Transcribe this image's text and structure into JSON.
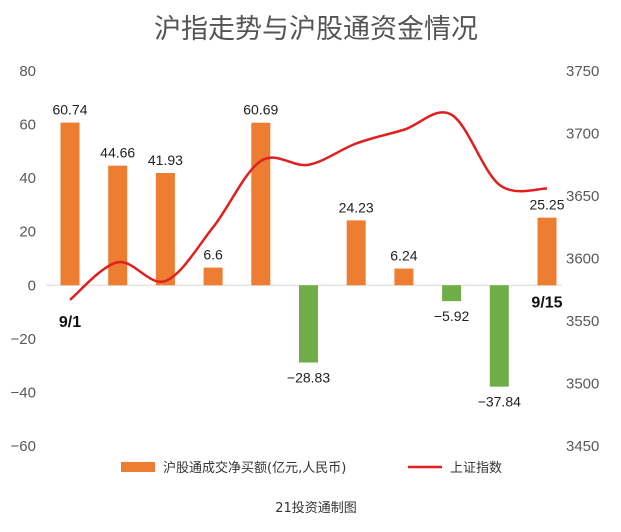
{
  "chart_data": {
    "type": "bar+line",
    "title": "沪指走势与沪股通资金情况",
    "footer": "21投资通制图",
    "bar_series": {
      "name": "沪股通成交净买额(亿元,人民币)",
      "values": [
        60.74,
        44.66,
        41.93,
        6.6,
        60.69,
        -28.83,
        24.23,
        6.24,
        -5.92,
        -37.84,
        25.25
      ],
      "labels": [
        "60.74",
        "44.66",
        "41.93",
        "6.6",
        "60.69",
        "−28.83",
        "24.23",
        "6.24",
        "−5.92",
        "−37.84",
        "25.25"
      ],
      "positive_color": "#ED7D31",
      "negative_color": "#70AD47"
    },
    "line_series": {
      "name": "上证指数",
      "color": "#E02020",
      "x": [
        0,
        1,
        2,
        3,
        4,
        5,
        6,
        7,
        8,
        9,
        10
      ],
      "values": [
        3567,
        3597,
        3582,
        3625,
        3678,
        3675,
        3692,
        3703,
        3715,
        3659,
        3656
      ]
    },
    "x_annotations": {
      "start": "9/1",
      "end": "9/15"
    },
    "y_left": {
      "min": -60,
      "max": 80,
      "ticks": [
        80,
        60,
        40,
        20,
        0,
        -20,
        -40,
        -60
      ],
      "tick_labels": [
        "80",
        "60",
        "40",
        "20",
        "0",
        "−20",
        "−40",
        "−60"
      ]
    },
    "y_right": {
      "min": 3450,
      "max": 3750,
      "ticks": [
        3750,
        3700,
        3650,
        3600,
        3550,
        3500,
        3450
      ],
      "tick_labels": [
        "3750",
        "3700",
        "3650",
        "3600",
        "3550",
        "3500",
        "3450"
      ]
    },
    "grid": false,
    "legend_position": "bottom"
  }
}
